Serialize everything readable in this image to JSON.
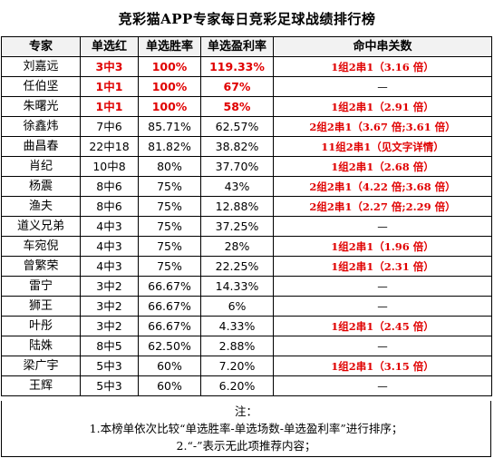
{
  "title": "竞彩猫APP专家每日竞彩足球战绩排行榜",
  "headers": [
    "专家",
    "单选红",
    "单选胜率",
    "单选盈利率",
    "命中串关数"
  ],
  "rows": [
    {
      "name": "刘嘉远",
      "hits": "3中3",
      "winrate": "100%",
      "profit": "119.33%",
      "combo": "1组2串1（3.16 倍）",
      "highlight": true
    },
    {
      "name": "任伯坚",
      "hits": "1中1",
      "winrate": "100%",
      "profit": "67%",
      "combo": "—",
      "highlight": true
    },
    {
      "name": "朱曙光",
      "hits": "1中1",
      "winrate": "100%",
      "profit": "58%",
      "combo": "1组2串1（2.91 倍）",
      "highlight": true
    },
    {
      "name": "徐鑫炜",
      "hits": "7中6",
      "winrate": "85.71%",
      "profit": "62.57%",
      "combo": "2组2串1（3.67 倍;3.61 倍）",
      "highlight": false
    },
    {
      "name": "曲昌春",
      "hits": "22中18",
      "winrate": "81.82%",
      "profit": "38.82%",
      "combo": "11组2串1（见文字详情）",
      "highlight": false
    },
    {
      "name": "肖纪",
      "hits": "10中8",
      "winrate": "80%",
      "profit": "37.70%",
      "combo": "1组2串1（2.68 倍）",
      "highlight": false
    },
    {
      "name": "杨震",
      "hits": "8中6",
      "winrate": "75%",
      "profit": "43%",
      "combo": "2组2串1（4.22 倍;3.68 倍）",
      "highlight": false
    },
    {
      "name": "渔夫",
      "hits": "8中6",
      "winrate": "75%",
      "profit": "12.88%",
      "combo": "2组2串1（2.27 倍;2.29 倍）",
      "highlight": false
    },
    {
      "name": "道义兄弟",
      "hits": "4中3",
      "winrate": "75%",
      "profit": "37.25%",
      "combo": "—",
      "highlight": false
    },
    {
      "name": "车宛倪",
      "hits": "4中3",
      "winrate": "75%",
      "profit": "28%",
      "combo": "1组2串1（1.96 倍）",
      "highlight": false
    },
    {
      "name": "曾繁荣",
      "hits": "4中3",
      "winrate": "75%",
      "profit": "22.25%",
      "combo": "1组2串1（2.31 倍）",
      "highlight": false
    },
    {
      "name": "雷宁",
      "hits": "3中2",
      "winrate": "66.67%",
      "profit": "14.33%",
      "combo": "—",
      "highlight": false
    },
    {
      "name": "狮王",
      "hits": "3中2",
      "winrate": "66.67%",
      "profit": "6%",
      "combo": "—",
      "highlight": false
    },
    {
      "name": "叶彤",
      "hits": "3中2",
      "winrate": "66.67%",
      "profit": "4.33%",
      "combo": "1组2串1（2.45 倍）",
      "highlight": false
    },
    {
      "name": "陆姝",
      "hits": "8中5",
      "winrate": "62.50%",
      "profit": "2.88%",
      "combo": "—",
      "highlight": false
    },
    {
      "name": "梁广宇",
      "hits": "5中3",
      "winrate": "60%",
      "profit": "7.20%",
      "combo": "1组2串1（3.15 倍）",
      "highlight": false
    },
    {
      "name": "王辉",
      "hits": "5中3",
      "winrate": "60%",
      "profit": "6.20%",
      "combo": "—",
      "highlight": false
    }
  ],
  "notes": {
    "heading": "注：",
    "line1": "1.本榜单依次比较“单选胜率-单选场数-单选盈利率”进行排序；",
    "line2": "2.“-”表示无此项推荐内容；"
  },
  "colors": {
    "highlight": "#e00000",
    "header_bg": "#f2f2f2"
  }
}
